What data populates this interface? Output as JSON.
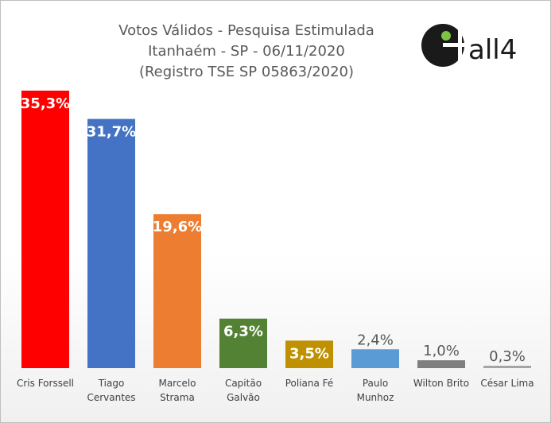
{
  "chart_data": {
    "type": "bar",
    "title": [
      "Votos Válidos - Pesquisa Estimulada",
      "Itanhaém - SP - 06/11/2020",
      "(Registro TSE SP 05863/2020)"
    ],
    "categories": [
      [
        "Cris Forssell"
      ],
      [
        "Tiago",
        "Cervantes"
      ],
      [
        "Marcelo",
        "Strama"
      ],
      [
        "Capitão",
        "Galvão"
      ],
      [
        "Poliana Fé"
      ],
      [
        "Paulo",
        "Munhoz"
      ],
      [
        "Wilton Brito"
      ],
      [
        "César Lima"
      ]
    ],
    "values": [
      35.3,
      31.7,
      19.6,
      6.3,
      3.5,
      2.4,
      1.0,
      0.3
    ],
    "labels": [
      "35,3%",
      "31,7%",
      "19,6%",
      "6,3%",
      "3,5%",
      "2,4%",
      "1,0%",
      "0,3%"
    ],
    "colors": [
      "#FF0000",
      "#4472C4",
      "#ED7D31",
      "#548235",
      "#BF9000",
      "#5B9BD5",
      "#7F7F7F",
      "#A5A5A5"
    ],
    "label_inside": [
      true,
      true,
      true,
      true,
      true,
      false,
      false,
      false
    ],
    "xlabel": "",
    "ylabel": "",
    "ylim": [
      0,
      36
    ],
    "grid": false
  },
  "logo": {
    "text": "all4"
  }
}
